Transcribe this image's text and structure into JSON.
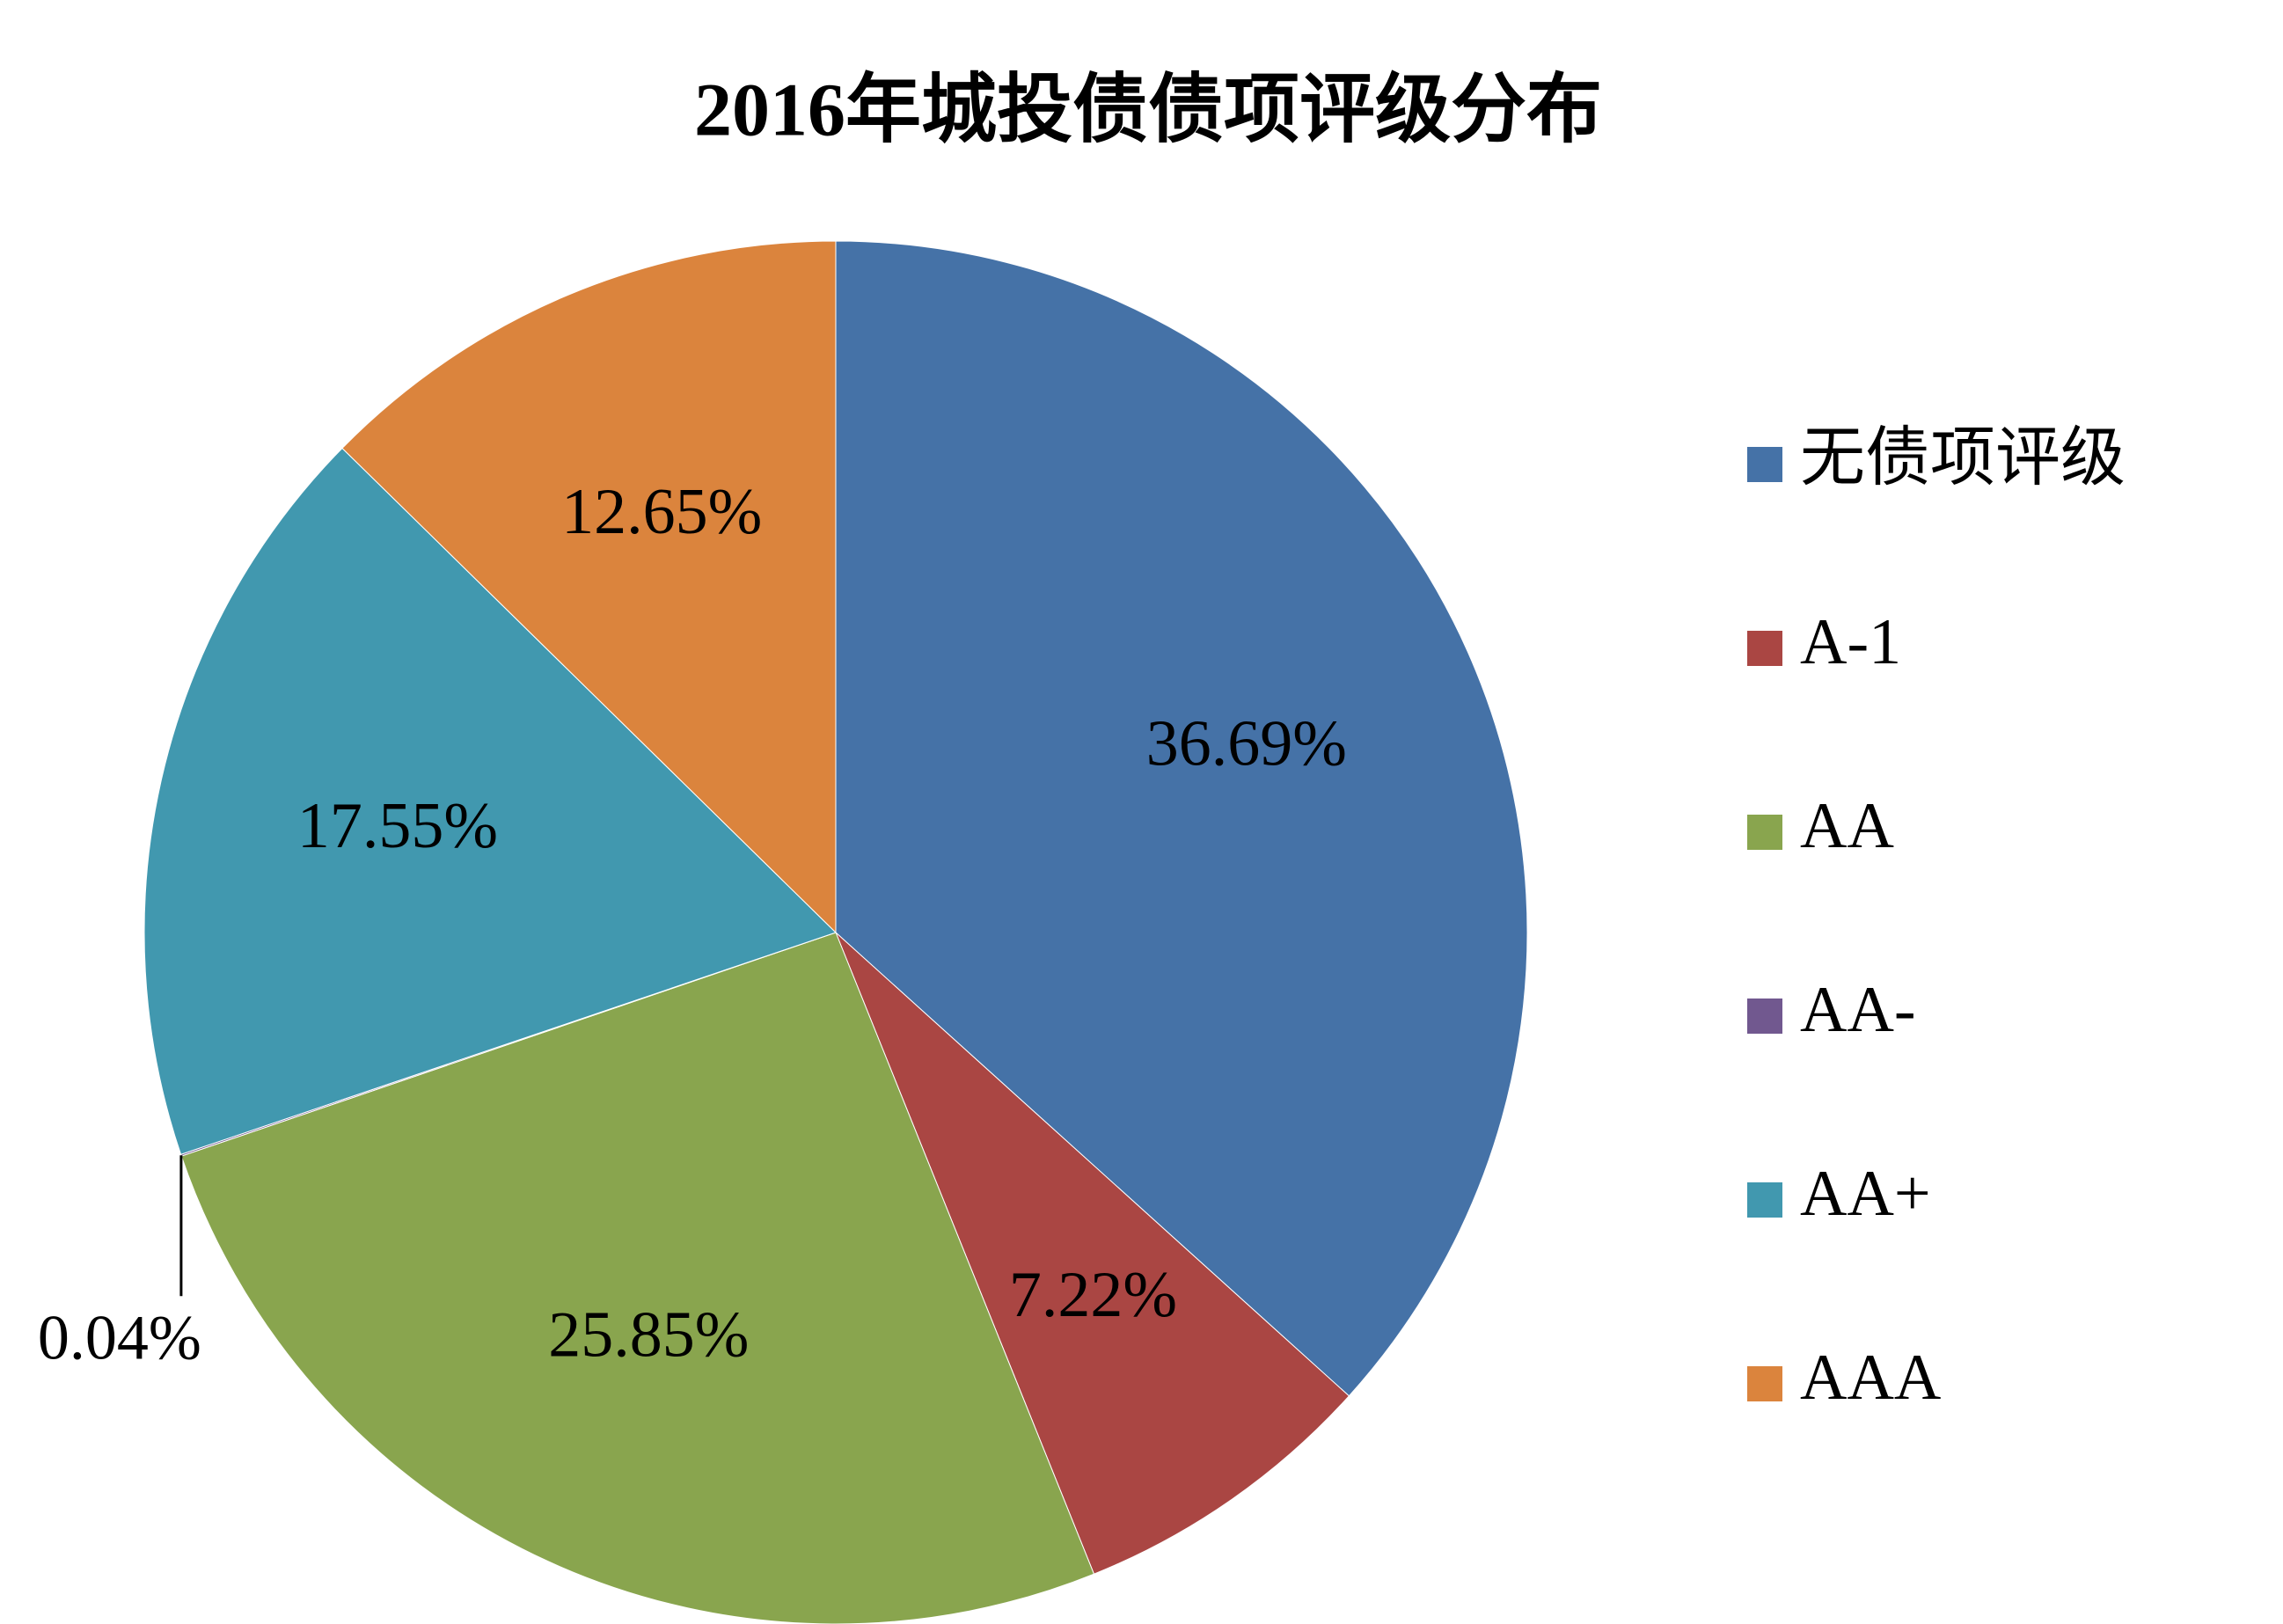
{
  "chart_data": {
    "type": "pie",
    "title": "2016年城投债债项评级分布",
    "categories": [
      "无债项评级",
      "A-1",
      "AA",
      "AA-",
      "AA+",
      "AAA"
    ],
    "values": [
      36.69,
      7.22,
      25.85,
      0.04,
      17.55,
      12.65
    ],
    "value_labels": [
      "36.69%",
      "7.22%",
      "25.85%",
      "0.04%",
      "17.55%",
      "12.65%"
    ],
    "colors": [
      "#4572a7",
      "#aa4643",
      "#89a54e",
      "#71588f",
      "#4198af",
      "#db843d"
    ],
    "legend": "right"
  }
}
